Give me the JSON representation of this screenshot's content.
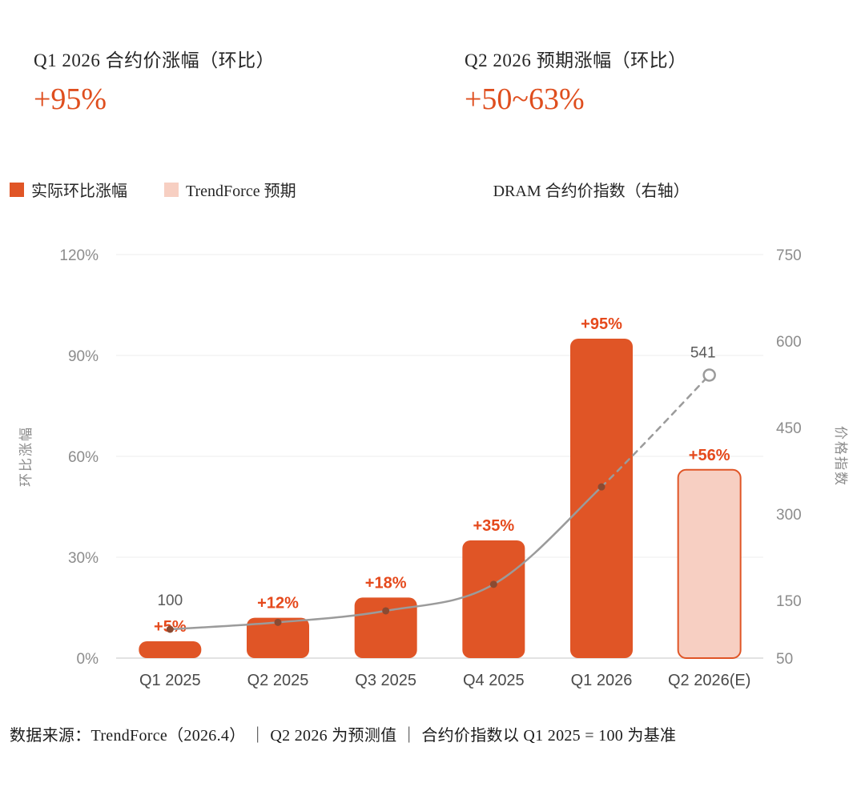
{
  "header": {
    "stat1": {
      "label": "Q1 2026 合约价涨幅（环比）",
      "value": "+95%"
    },
    "stat2": {
      "label": "Q2 2026 预期涨幅（环比）",
      "value": "+50~63%"
    }
  },
  "legend": {
    "actual": "实际环比涨幅",
    "forecast": "TrendForce 预期",
    "line": "DRAM 合约价指数（右轴）"
  },
  "footer": {
    "text": "数据来源：TrendForce（2026.4） ｜ Q2 2026 为预测值 ｜ 合约价指数以 Q1 2025 = 100 为基准"
  },
  "colors": {
    "bar": "#E05526",
    "bar_label": "#E5491C",
    "forecast_fill": "#F7CFC2",
    "forecast_stroke": "#E05526",
    "line": "#9B9B9B",
    "dot": "#8A4A32",
    "accent_text": "#DF4E1E",
    "grid": "#ededed",
    "baseline": "#d9d9d9"
  },
  "chart_data": {
    "type": "combo-bar-line",
    "categories": [
      "Q1 2025",
      "Q2 2025",
      "Q3 2025",
      "Q4 2025",
      "Q1 2026",
      "Q2 2026(E)"
    ],
    "bars": {
      "name": "实际环比涨幅",
      "axis": "left",
      "values": [
        5,
        12,
        18,
        35,
        95,
        56
      ],
      "labels": [
        "+5%",
        "+12%",
        "+18%",
        "+35%",
        "+95%",
        "+56%"
      ],
      "forecast": [
        false,
        false,
        false,
        false,
        false,
        true
      ]
    },
    "line": {
      "name": "DRAM 合约价指数",
      "axis": "right",
      "values": [
        100,
        112,
        132,
        178,
        347,
        541
      ],
      "dashed_from": 4,
      "first_point_label": "100",
      "last_point_label": "541"
    },
    "left_axis": {
      "title": "环比涨幅",
      "range": [
        0,
        120
      ],
      "tick_values": [
        0,
        30,
        60,
        90,
        120
      ],
      "tick_labels": [
        "0%",
        "30%",
        "60%",
        "90%",
        "120%"
      ]
    },
    "right_axis": {
      "title": "价格指数",
      "range": [
        50,
        750
      ],
      "tick_values": [
        50,
        150,
        300,
        450,
        600,
        750
      ],
      "tick_labels": [
        "50",
        "150",
        "300",
        "450",
        "600",
        "750"
      ]
    },
    "grid": true,
    "legend_position": "top"
  }
}
